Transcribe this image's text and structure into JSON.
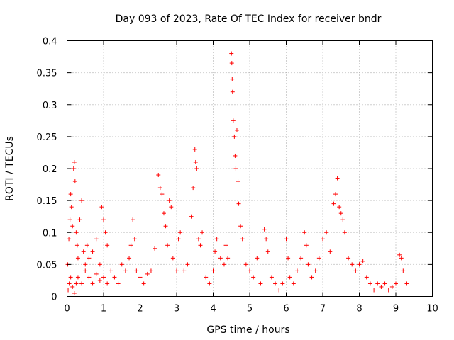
{
  "chart_data": {
    "type": "scatter",
    "title": "Day 093 of 2023, Rate Of TEC Index for receiver bndr",
    "xlabel": "GPS time / hours",
    "ylabel": "ROTI / TECUs",
    "xlim": [
      0,
      10
    ],
    "ylim": [
      0,
      0.4
    ],
    "xticks": [
      "0",
      "1",
      "2",
      "3",
      "4",
      "5",
      "6",
      "7",
      "8",
      "9",
      "10"
    ],
    "yticks": [
      "0",
      "0.05",
      "0.1",
      "0.15",
      "0.2",
      "0.25",
      "0.3",
      "0.35",
      "0.4"
    ],
    "grid": true,
    "marker": "+",
    "color": "#ff0000",
    "series": [
      {
        "name": "ROTI",
        "points": [
          [
            0.02,
            0.05
          ],
          [
            0.05,
            0.09
          ],
          [
            0.08,
            0.12
          ],
          [
            0.1,
            0.16
          ],
          [
            0.12,
            0.14
          ],
          [
            0.15,
            0.11
          ],
          [
            0.18,
            0.2
          ],
          [
            0.2,
            0.21
          ],
          [
            0.22,
            0.18
          ],
          [
            0.25,
            0.1
          ],
          [
            0.28,
            0.08
          ],
          [
            0.3,
            0.06
          ],
          [
            0.35,
            0.12
          ],
          [
            0.4,
            0.15
          ],
          [
            0.45,
            0.07
          ],
          [
            0.5,
            0.05
          ],
          [
            0.55,
            0.08
          ],
          [
            0.6,
            0.06
          ],
          [
            0.7,
            0.07
          ],
          [
            0.8,
            0.09
          ],
          [
            0.9,
            0.05
          ],
          [
            0.95,
            0.14
          ],
          [
            1.0,
            0.12
          ],
          [
            1.05,
            0.1
          ],
          [
            1.1,
            0.08
          ],
          [
            0.03,
            0.01
          ],
          [
            0.06,
            0.02
          ],
          [
            0.1,
            0.03
          ],
          [
            0.15,
            0.015
          ],
          [
            0.2,
            0.005
          ],
          [
            0.25,
            0.02
          ],
          [
            0.3,
            0.03
          ],
          [
            0.4,
            0.02
          ],
          [
            0.5,
            0.04
          ],
          [
            0.6,
            0.03
          ],
          [
            0.7,
            0.02
          ],
          [
            0.8,
            0.035
          ],
          [
            0.9,
            0.025
          ],
          [
            1.0,
            0.03
          ],
          [
            1.1,
            0.02
          ],
          [
            1.2,
            0.04
          ],
          [
            1.3,
            0.03
          ],
          [
            1.4,
            0.02
          ],
          [
            1.5,
            0.05
          ],
          [
            1.6,
            0.04
          ],
          [
            1.7,
            0.06
          ],
          [
            1.75,
            0.08
          ],
          [
            1.8,
            0.12
          ],
          [
            1.85,
            0.09
          ],
          [
            1.9,
            0.04
          ],
          [
            2.0,
            0.03
          ],
          [
            2.1,
            0.02
          ],
          [
            2.2,
            0.035
          ],
          [
            2.3,
            0.04
          ],
          [
            2.4,
            0.075
          ],
          [
            2.5,
            0.19
          ],
          [
            2.55,
            0.17
          ],
          [
            2.6,
            0.16
          ],
          [
            2.65,
            0.13
          ],
          [
            2.7,
            0.11
          ],
          [
            2.75,
            0.08
          ],
          [
            2.8,
            0.15
          ],
          [
            2.85,
            0.14
          ],
          [
            2.9,
            0.06
          ],
          [
            3.0,
            0.04
          ],
          [
            3.05,
            0.09
          ],
          [
            3.1,
            0.1
          ],
          [
            3.2,
            0.04
          ],
          [
            3.3,
            0.05
          ],
          [
            3.4,
            0.125
          ],
          [
            3.45,
            0.17
          ],
          [
            3.5,
            0.23
          ],
          [
            3.52,
            0.21
          ],
          [
            3.55,
            0.2
          ],
          [
            3.6,
            0.09
          ],
          [
            3.65,
            0.08
          ],
          [
            3.7,
            0.1
          ],
          [
            3.8,
            0.03
          ],
          [
            3.9,
            0.02
          ],
          [
            4.0,
            0.04
          ],
          [
            4.05,
            0.07
          ],
          [
            4.1,
            0.09
          ],
          [
            4.2,
            0.06
          ],
          [
            4.3,
            0.05
          ],
          [
            4.35,
            0.08
          ],
          [
            4.4,
            0.06
          ],
          [
            4.5,
            0.38
          ],
          [
            4.51,
            0.365
          ],
          [
            4.52,
            0.34
          ],
          [
            4.53,
            0.32
          ],
          [
            4.55,
            0.275
          ],
          [
            4.58,
            0.25
          ],
          [
            4.6,
            0.22
          ],
          [
            4.62,
            0.2
          ],
          [
            4.65,
            0.26
          ],
          [
            4.68,
            0.18
          ],
          [
            4.7,
            0.145
          ],
          [
            4.75,
            0.11
          ],
          [
            4.8,
            0.09
          ],
          [
            4.9,
            0.05
          ],
          [
            5.0,
            0.04
          ],
          [
            5.1,
            0.03
          ],
          [
            5.2,
            0.06
          ],
          [
            5.3,
            0.02
          ],
          [
            5.4,
            0.105
          ],
          [
            5.45,
            0.09
          ],
          [
            5.5,
            0.07
          ],
          [
            5.6,
            0.03
          ],
          [
            5.7,
            0.02
          ],
          [
            5.8,
            0.01
          ],
          [
            5.9,
            0.02
          ],
          [
            6.0,
            0.09
          ],
          [
            6.05,
            0.06
          ],
          [
            6.1,
            0.03
          ],
          [
            6.2,
            0.02
          ],
          [
            6.3,
            0.04
          ],
          [
            6.4,
            0.06
          ],
          [
            6.5,
            0.1
          ],
          [
            6.55,
            0.08
          ],
          [
            6.6,
            0.05
          ],
          [
            6.7,
            0.03
          ],
          [
            6.8,
            0.04
          ],
          [
            6.9,
            0.06
          ],
          [
            7.0,
            0.09
          ],
          [
            7.1,
            0.1
          ],
          [
            7.2,
            0.07
          ],
          [
            7.3,
            0.145
          ],
          [
            7.35,
            0.16
          ],
          [
            7.4,
            0.185
          ],
          [
            7.45,
            0.14
          ],
          [
            7.5,
            0.13
          ],
          [
            7.55,
            0.12
          ],
          [
            7.6,
            0.1
          ],
          [
            7.7,
            0.06
          ],
          [
            7.8,
            0.05
          ],
          [
            7.9,
            0.04
          ],
          [
            8.0,
            0.05
          ],
          [
            8.1,
            0.055
          ],
          [
            8.2,
            0.03
          ],
          [
            8.3,
            0.02
          ],
          [
            8.4,
            0.01
          ],
          [
            8.5,
            0.02
          ],
          [
            8.6,
            0.015
          ],
          [
            8.7,
            0.02
          ],
          [
            8.8,
            0.01
          ],
          [
            8.9,
            0.015
          ],
          [
            9.0,
            0.02
          ],
          [
            9.1,
            0.065
          ],
          [
            9.15,
            0.06
          ],
          [
            9.2,
            0.04
          ],
          [
            9.3,
            0.02
          ]
        ]
      }
    ]
  }
}
